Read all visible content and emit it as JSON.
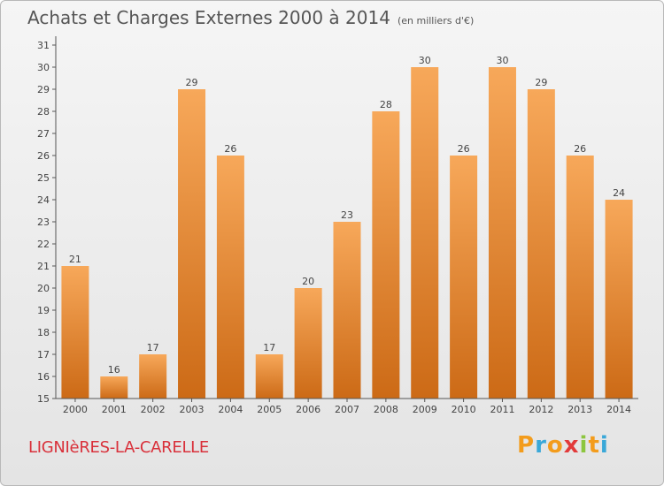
{
  "chart_data": {
    "type": "bar",
    "title": "Achats et Charges Externes 2000 à 2014",
    "subtitle": "(en milliers d'€)",
    "xlabel": "",
    "ylabel": "",
    "categories": [
      "2000",
      "2001",
      "2002",
      "2003",
      "2004",
      "2005",
      "2006",
      "2007",
      "2008",
      "2009",
      "2010",
      "2011",
      "2012",
      "2013",
      "2014"
    ],
    "values": [
      21,
      16,
      17,
      29,
      26,
      17,
      20,
      23,
      28,
      30,
      26,
      30,
      29,
      26,
      24
    ],
    "ylim": [
      15,
      31
    ],
    "yticks": [
      15,
      16,
      17,
      18,
      19,
      20,
      21,
      22,
      23,
      24,
      25,
      26,
      27,
      28,
      29,
      30,
      31
    ],
    "grid": false,
    "data_labels": true,
    "bar_color_top": "#f7a85a",
    "bar_color_bottom": "#cc6a16"
  },
  "footer": {
    "place": "LIGNIèRES-LA-CARELLE",
    "logo_letters": [
      "P",
      "r",
      "o",
      "x",
      "i",
      "t",
      "i"
    ],
    "logo_colors": [
      "#f39c1c",
      "#3aa8d8",
      "#f39c1c",
      "#e23a3a",
      "#8cc63f",
      "#f39c1c",
      "#3aa8d8"
    ]
  }
}
